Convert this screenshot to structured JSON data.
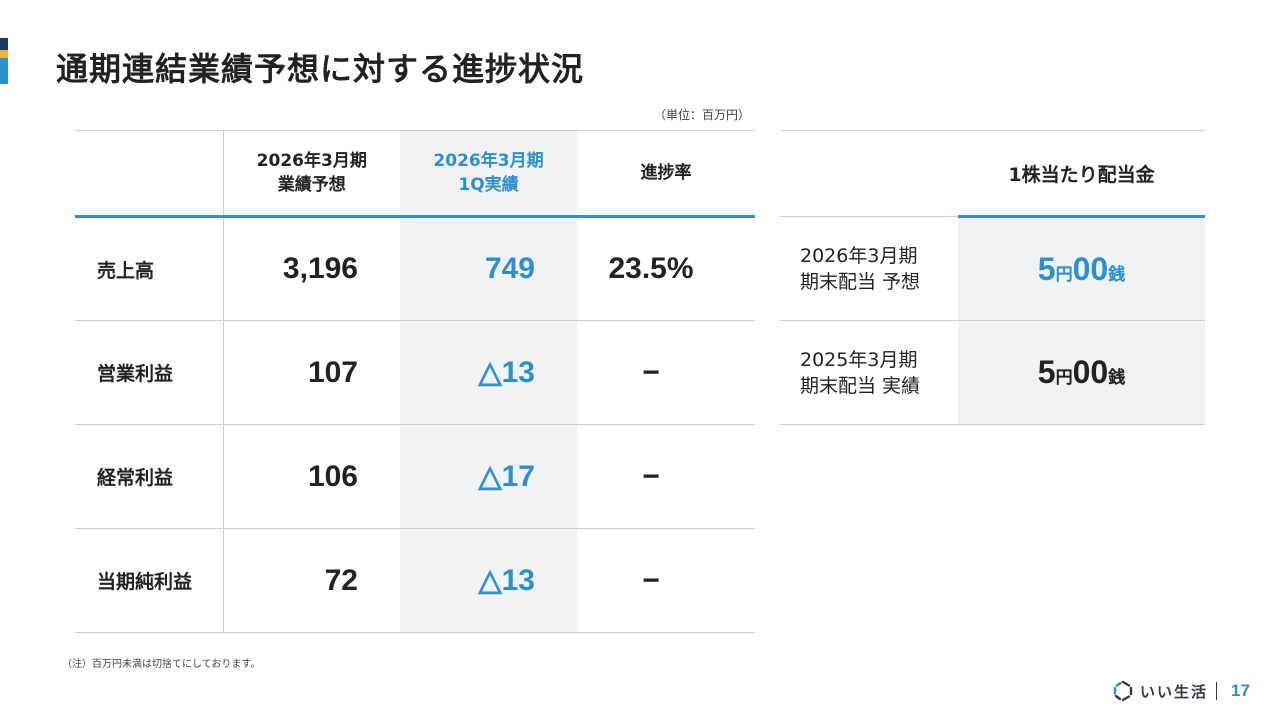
{
  "title": "通期連結業績予想に対する進捗状況",
  "unit_note": "（単位：百万円）",
  "results_table": {
    "headers": {
      "forecast": [
        "2026年3月期",
        "業績予想"
      ],
      "actual": [
        "2026年3月期",
        "1Q実績"
      ],
      "progress": "進捗率"
    },
    "rows": [
      {
        "label": "売上高",
        "forecast": "3,196",
        "actual": "749",
        "progress": "23.5%"
      },
      {
        "label": "営業利益",
        "forecast": "107",
        "actual": "△13",
        "progress": "−"
      },
      {
        "label": "経常利益",
        "forecast": "106",
        "actual": "△17",
        "progress": "−"
      },
      {
        "label": "当期純利益",
        "forecast": "72",
        "actual": "△13",
        "progress": "−"
      }
    ]
  },
  "dividend_table": {
    "header": "1株当たり配当金",
    "rows": [
      {
        "period": "2026年3月期",
        "type": "期末配当 予想",
        "yen": "5",
        "yen_unit": "円",
        "sen": "00",
        "sen_unit": "銭"
      },
      {
        "period": "2025年3月期",
        "type": "期末配当 実績",
        "yen": "5",
        "yen_unit": "円",
        "sen": "00",
        "sen_unit": "銭"
      }
    ]
  },
  "footnote": "（注）百万円未満は切捨てにしております。",
  "footer": {
    "brand": "いい生活",
    "page_number": "17"
  },
  "colors": {
    "accent_blue": "#2b8fd0",
    "accent_yellow": "#f2b134",
    "accent_navy": "#1b3a5c",
    "shade": "#f1f2f3"
  }
}
